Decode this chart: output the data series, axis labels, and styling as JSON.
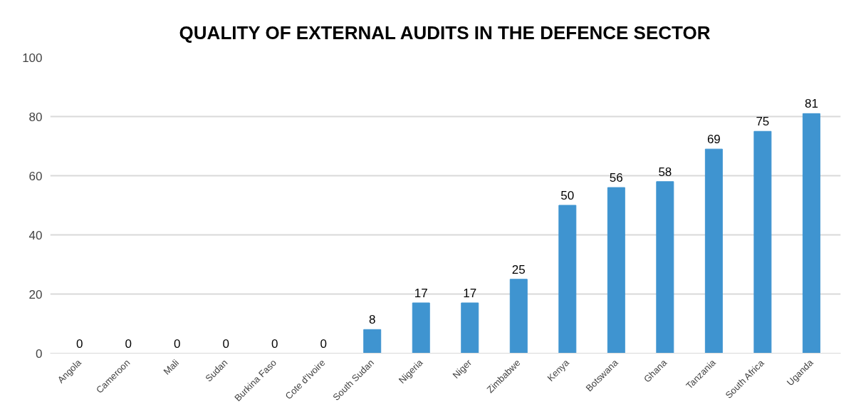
{
  "chart_data": {
    "type": "bar",
    "title": "QUALITY OF EXTERNAL AUDITS IN THE DEFENCE SECTOR",
    "categories": [
      "Angola",
      "Cameroon",
      "Mali",
      "Sudan",
      "Burkina Faso",
      "Cote d'Ivoire",
      "South Sudan",
      "Nigeria",
      "Niger",
      "Zimbabwe",
      "Kenya",
      "Botswana",
      "Ghana",
      "Tanzania",
      "South Africa",
      "Uganda"
    ],
    "values": [
      0,
      0,
      0,
      0,
      0,
      0,
      8,
      17,
      17,
      25,
      50,
      56,
      58,
      69,
      75,
      81
    ],
    "colors": [
      "#3f94d0",
      "#3f94d0",
      "#e8820c",
      "#3f94d0",
      "#3f94d0",
      "#3f94d0",
      "#3f94d0",
      "#3f94d0",
      "#3f94d0",
      "#3f94d0",
      "#3f94d0",
      "#3f94d0",
      "#3f94d0",
      "#3f94d0",
      "#3f94d0",
      "#3f94d0"
    ],
    "ylim": [
      0,
      100
    ],
    "yticks": [
      0,
      20,
      40,
      60,
      80,
      100
    ],
    "grid": "y",
    "data_labels": true
  }
}
